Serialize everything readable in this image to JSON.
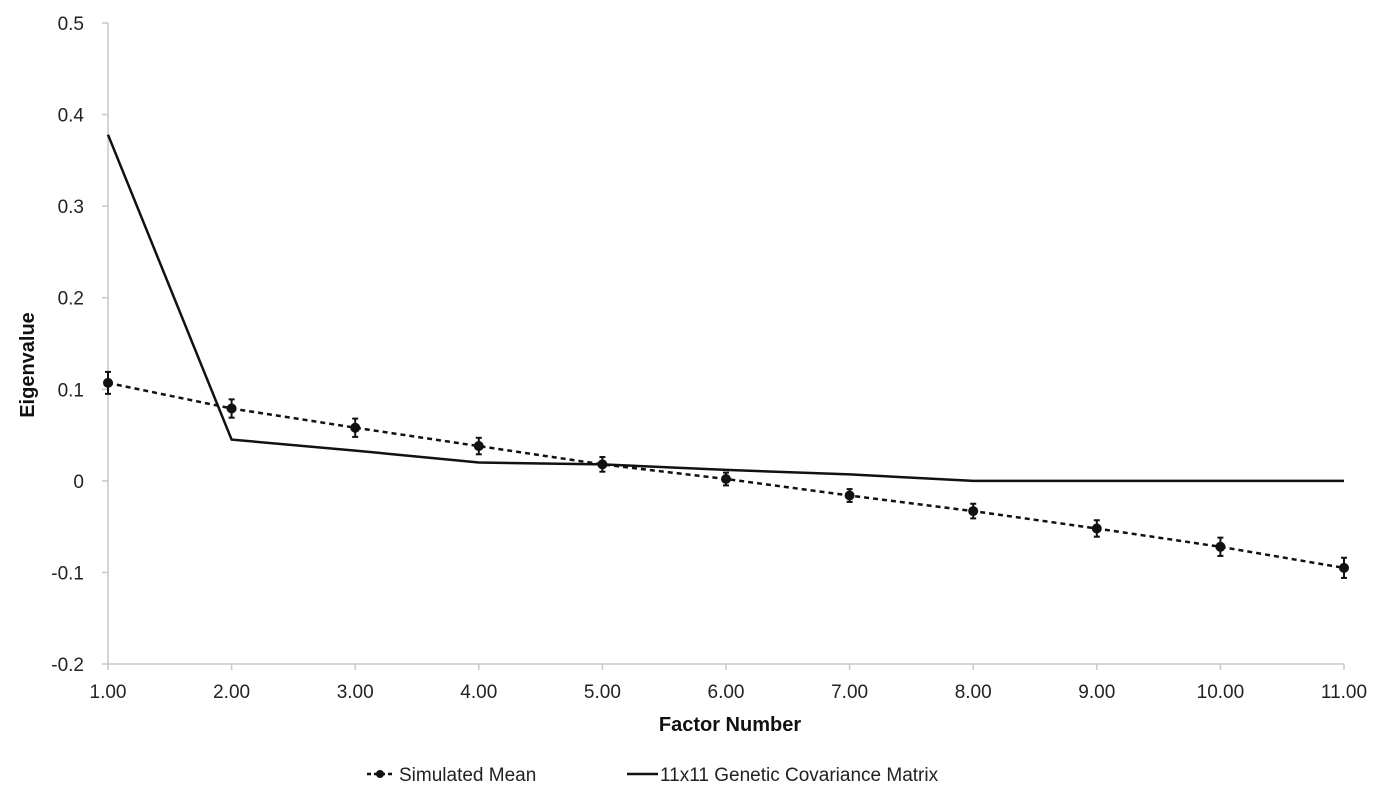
{
  "chart_data": {
    "type": "line",
    "title": "",
    "xlabel": "Factor Number",
    "ylabel": "Eigenvalue",
    "x": [
      1,
      2,
      3,
      4,
      5,
      6,
      7,
      8,
      9,
      10,
      11
    ],
    "x_tick_labels": [
      "1.00",
      "2.00",
      "3.00",
      "4.00",
      "5.00",
      "6.00",
      "7.00",
      "8.00",
      "9.00",
      "10.00",
      "11.00"
    ],
    "y_tick_values": [
      -0.2,
      -0.1,
      0,
      0.1,
      0.2,
      0.3,
      0.4,
      0.5
    ],
    "y_tick_labels": [
      "-0.2",
      "-0.1",
      "0",
      "0.1",
      "0.2",
      "0.3",
      "0.4",
      "0.5"
    ],
    "xlim": [
      1,
      11
    ],
    "ylim": [
      -0.2,
      0.5
    ],
    "grid": false,
    "legend_position": "bottom",
    "series": [
      {
        "name": "Simulated Mean",
        "style": "dashed-with-markers",
        "color": "#111111",
        "values": [
          0.107,
          0.079,
          0.058,
          0.038,
          0.018,
          0.002,
          -0.016,
          -0.033,
          -0.052,
          -0.072,
          -0.095
        ],
        "error": [
          0.012,
          0.01,
          0.01,
          0.009,
          0.008,
          0.007,
          0.007,
          0.008,
          0.009,
          0.01,
          0.011
        ]
      },
      {
        "name": "11x11 Genetic Covariance Matrix",
        "style": "solid",
        "color": "#111111",
        "values": [
          0.378,
          0.045,
          0.033,
          0.02,
          0.018,
          0.012,
          0.007,
          0.0,
          0.0,
          0.0,
          0.0
        ]
      }
    ]
  }
}
